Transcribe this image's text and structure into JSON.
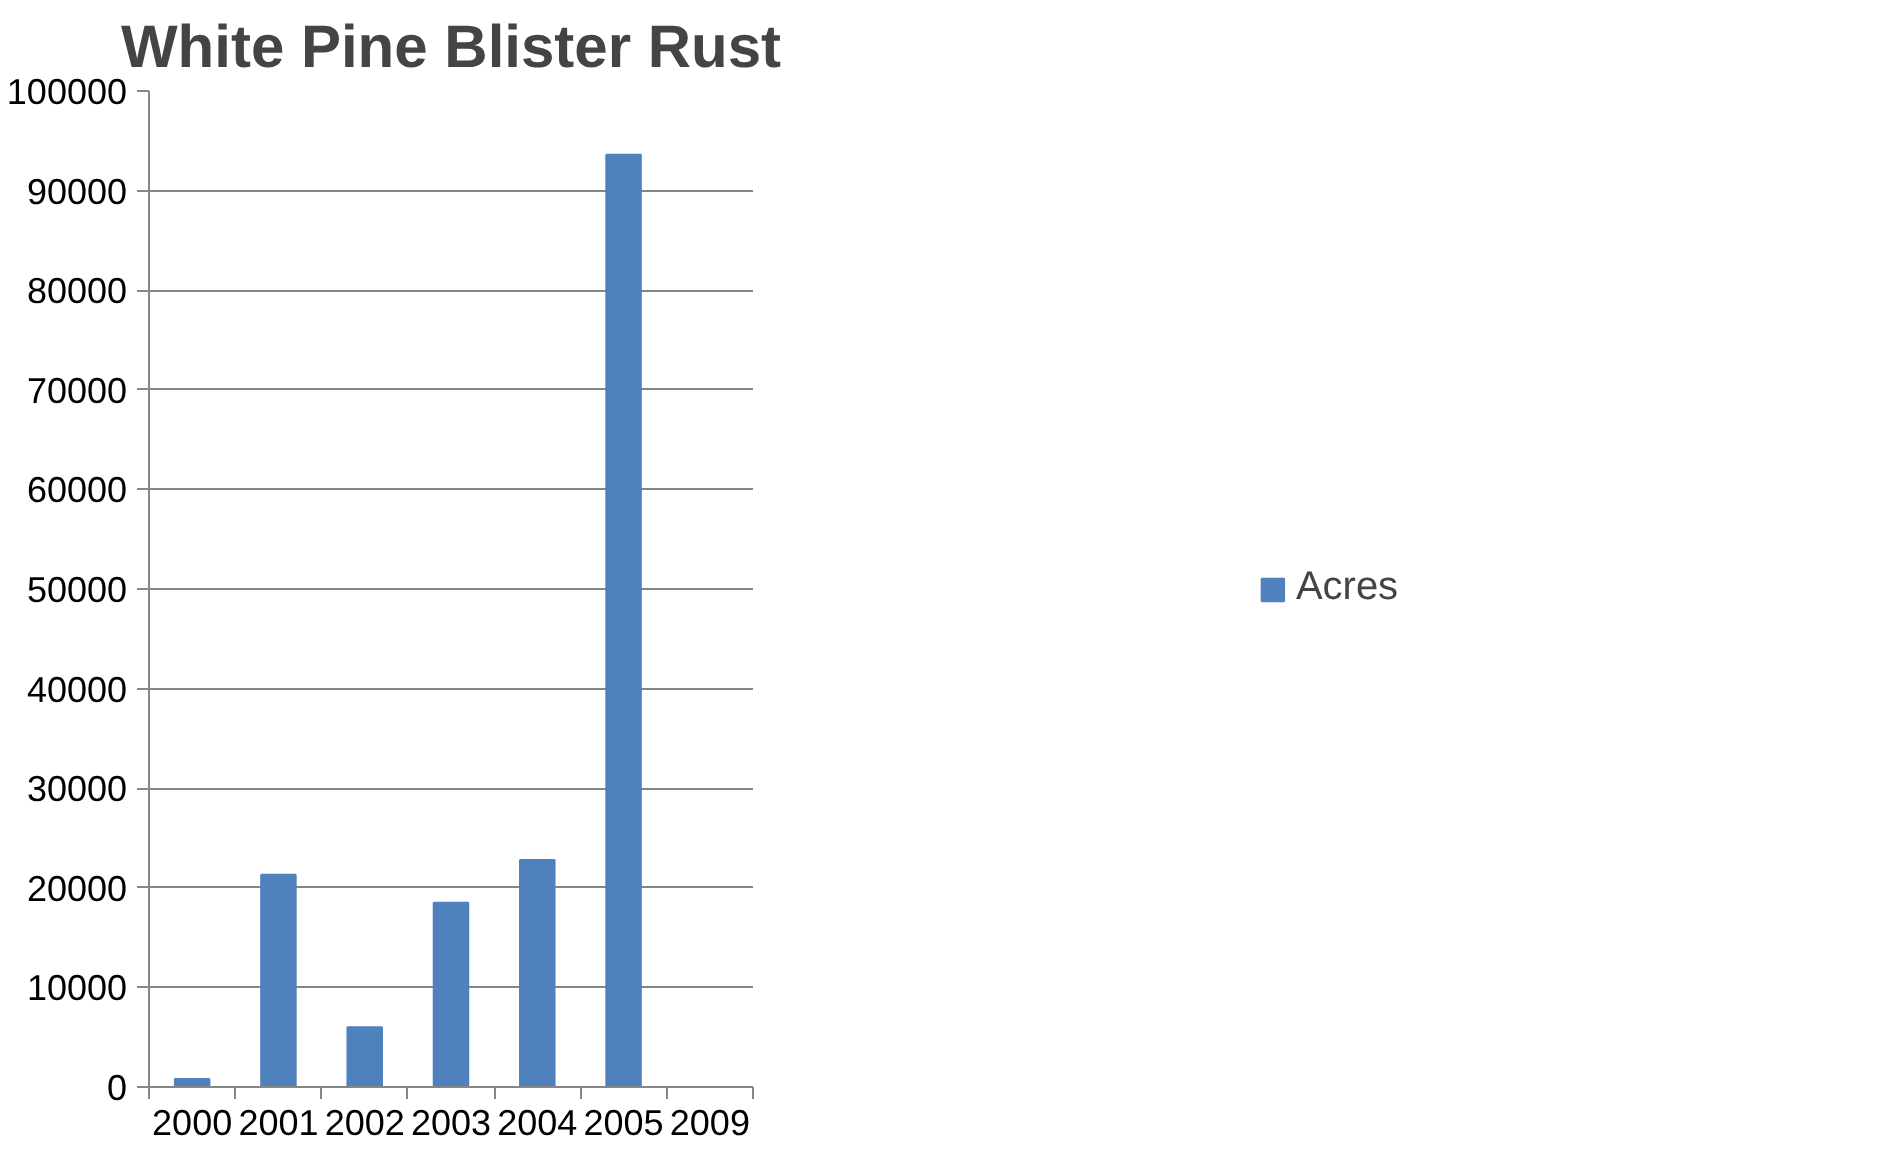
{
  "chart_data": {
    "type": "bar",
    "title": "White Pine Blister Rust",
    "categories": [
      "2000",
      "2001",
      "2002",
      "2003",
      "2004",
      "2005",
      "2009"
    ],
    "series": [
      {
        "name": "Acres",
        "color": "#4f81bd",
        "values": [
          800,
          21300,
          6000,
          18500,
          22800,
          93600,
          0
        ]
      }
    ],
    "ylim": [
      0,
      100000
    ],
    "yticks": [
      0,
      10000,
      20000,
      30000,
      40000,
      50000,
      60000,
      70000,
      80000,
      90000,
      100000
    ],
    "grid": "y",
    "legend": "right"
  }
}
